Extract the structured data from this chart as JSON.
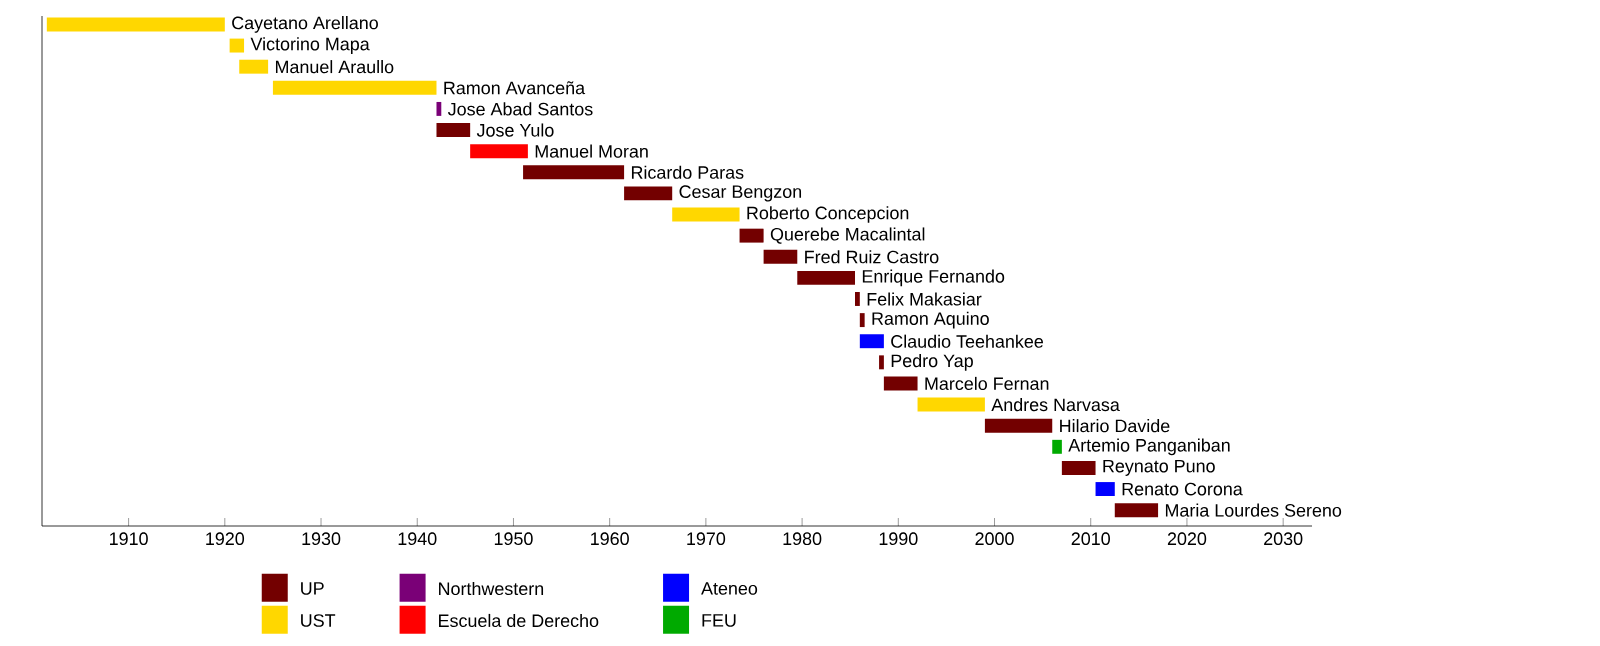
{
  "chart_data": {
    "type": "bar",
    "orientation": "horizontal",
    "categories": [
      "Cayetano Arellano",
      "Victorino Mapa",
      "Manuel Araullo",
      "Ramon Avanceña",
      "Jose Abad Santos",
      "Jose Yulo",
      "Manuel Moran",
      "Ricardo Paras",
      "Cesar Bengzon",
      "Roberto Concepcion",
      "Querebe Macalintal",
      "Fred Ruiz Castro",
      "Enrique Fernando",
      "Felix Makasiar",
      "Ramon Aquino",
      "Claudio Teehankee",
      "Pedro Yap",
      "Marcelo Fernan",
      "Andres Narvasa",
      "Hilario Davide",
      "Artemio Panganiban",
      "Reynato Puno",
      "Renato Corona",
      "Maria Lourdes Sereno"
    ],
    "series": [
      {
        "name": "UP",
        "color": "#730000",
        "base": [
          null,
          null,
          null,
          null,
          null,
          1942,
          null,
          1951,
          1961.5,
          null,
          1973.5,
          1976,
          1979.5,
          1985.5,
          1986,
          null,
          1988,
          1988.5,
          null,
          1999,
          null,
          2007,
          null,
          2012.5
        ],
        "values": [
          null,
          null,
          null,
          null,
          null,
          3.5,
          null,
          10.5,
          5,
          null,
          2.5,
          3.5,
          6,
          0.5,
          0.5,
          null,
          0.5,
          3.5,
          null,
          7,
          null,
          3.5,
          null,
          4.5
        ]
      },
      {
        "name": "UST",
        "color": "#ffd700",
        "base": [
          1901.5,
          1920.5,
          1921.5,
          1925,
          null,
          null,
          null,
          null,
          null,
          1966.5,
          null,
          null,
          null,
          null,
          null,
          null,
          null,
          null,
          1992,
          null,
          null,
          null,
          null,
          null
        ],
        "values": [
          18.5,
          1.5,
          3,
          17,
          null,
          null,
          null,
          null,
          null,
          7,
          null,
          null,
          null,
          null,
          null,
          null,
          null,
          null,
          7,
          null,
          null,
          null,
          null,
          null
        ]
      },
      {
        "name": "Northwestern",
        "color": "#7a0077",
        "base": [
          null,
          null,
          null,
          null,
          1942,
          null,
          null,
          null,
          null,
          null,
          null,
          null,
          null,
          null,
          null,
          null,
          null,
          null,
          null,
          null,
          null,
          null,
          null,
          null
        ],
        "values": [
          null,
          null,
          null,
          null,
          0.5,
          null,
          null,
          null,
          null,
          null,
          null,
          null,
          null,
          null,
          null,
          null,
          null,
          null,
          null,
          null,
          null,
          null,
          null,
          null
        ]
      },
      {
        "name": "Escuela de Derecho",
        "color": "#ff0000",
        "base": [
          null,
          null,
          null,
          null,
          null,
          null,
          1945.5,
          null,
          null,
          null,
          null,
          null,
          null,
          null,
          null,
          null,
          null,
          null,
          null,
          null,
          null,
          null,
          null,
          null
        ],
        "values": [
          null,
          null,
          null,
          null,
          null,
          null,
          6,
          null,
          null,
          null,
          null,
          null,
          null,
          null,
          null,
          null,
          null,
          null,
          null,
          null,
          null,
          null,
          null,
          null
        ]
      },
      {
        "name": "Ateneo",
        "color": "#0000ff",
        "base": [
          null,
          null,
          null,
          null,
          null,
          null,
          null,
          null,
          null,
          null,
          null,
          null,
          null,
          null,
          null,
          1986,
          null,
          null,
          null,
          null,
          null,
          null,
          2010.5,
          null
        ],
        "values": [
          null,
          null,
          null,
          null,
          null,
          null,
          null,
          null,
          null,
          null,
          null,
          null,
          null,
          null,
          null,
          2.5,
          null,
          null,
          null,
          null,
          null,
          null,
          2,
          null
        ]
      },
      {
        "name": "FEU",
        "color": "#00aa00",
        "base": [
          null,
          null,
          null,
          null,
          null,
          null,
          null,
          null,
          null,
          null,
          null,
          null,
          null,
          null,
          null,
          null,
          null,
          null,
          null,
          null,
          2006,
          null,
          null,
          null
        ],
        "values": [
          null,
          null,
          null,
          null,
          null,
          null,
          null,
          null,
          null,
          null,
          null,
          null,
          null,
          null,
          null,
          null,
          null,
          null,
          null,
          null,
          1,
          null,
          null,
          null
        ]
      }
    ],
    "xlim": [
      1901,
      2033
    ],
    "xticks": [
      1910,
      1920,
      1930,
      1940,
      1950,
      1960,
      1970,
      1980,
      1990,
      2000,
      2010,
      2020,
      2030
    ],
    "tick_labels": "x",
    "legend": "bottom"
  }
}
